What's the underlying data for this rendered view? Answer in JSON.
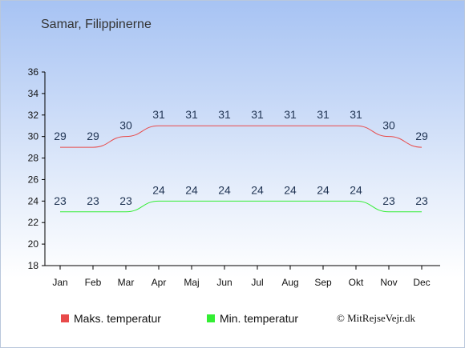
{
  "header": {
    "title": "Samar, Filippinerne"
  },
  "legend": {
    "max_label": "Maks. temperatur",
    "min_label": "Min. temperatur"
  },
  "credit": "© MitRejseVejr.dk",
  "colors": {
    "max": "#e84a4a",
    "min": "#33ee33"
  },
  "chart_data": {
    "type": "line",
    "categories": [
      "Jan",
      "Feb",
      "Mar",
      "Apr",
      "Maj",
      "Jun",
      "Jul",
      "Aug",
      "Sep",
      "Okt",
      "Nov",
      "Dec"
    ],
    "series": [
      {
        "name": "Maks. temperatur",
        "values": [
          29,
          29,
          30,
          31,
          31,
          31,
          31,
          31,
          31,
          31,
          30,
          29
        ]
      },
      {
        "name": "Min. temperatur",
        "values": [
          23,
          23,
          23,
          24,
          24,
          24,
          24,
          24,
          24,
          24,
          23,
          23
        ]
      }
    ],
    "yticks": [
      18,
      20,
      22,
      24,
      26,
      28,
      30,
      32,
      34,
      36
    ],
    "ylim": [
      18,
      36
    ],
    "legend_position": "bottom",
    "grid": false
  }
}
